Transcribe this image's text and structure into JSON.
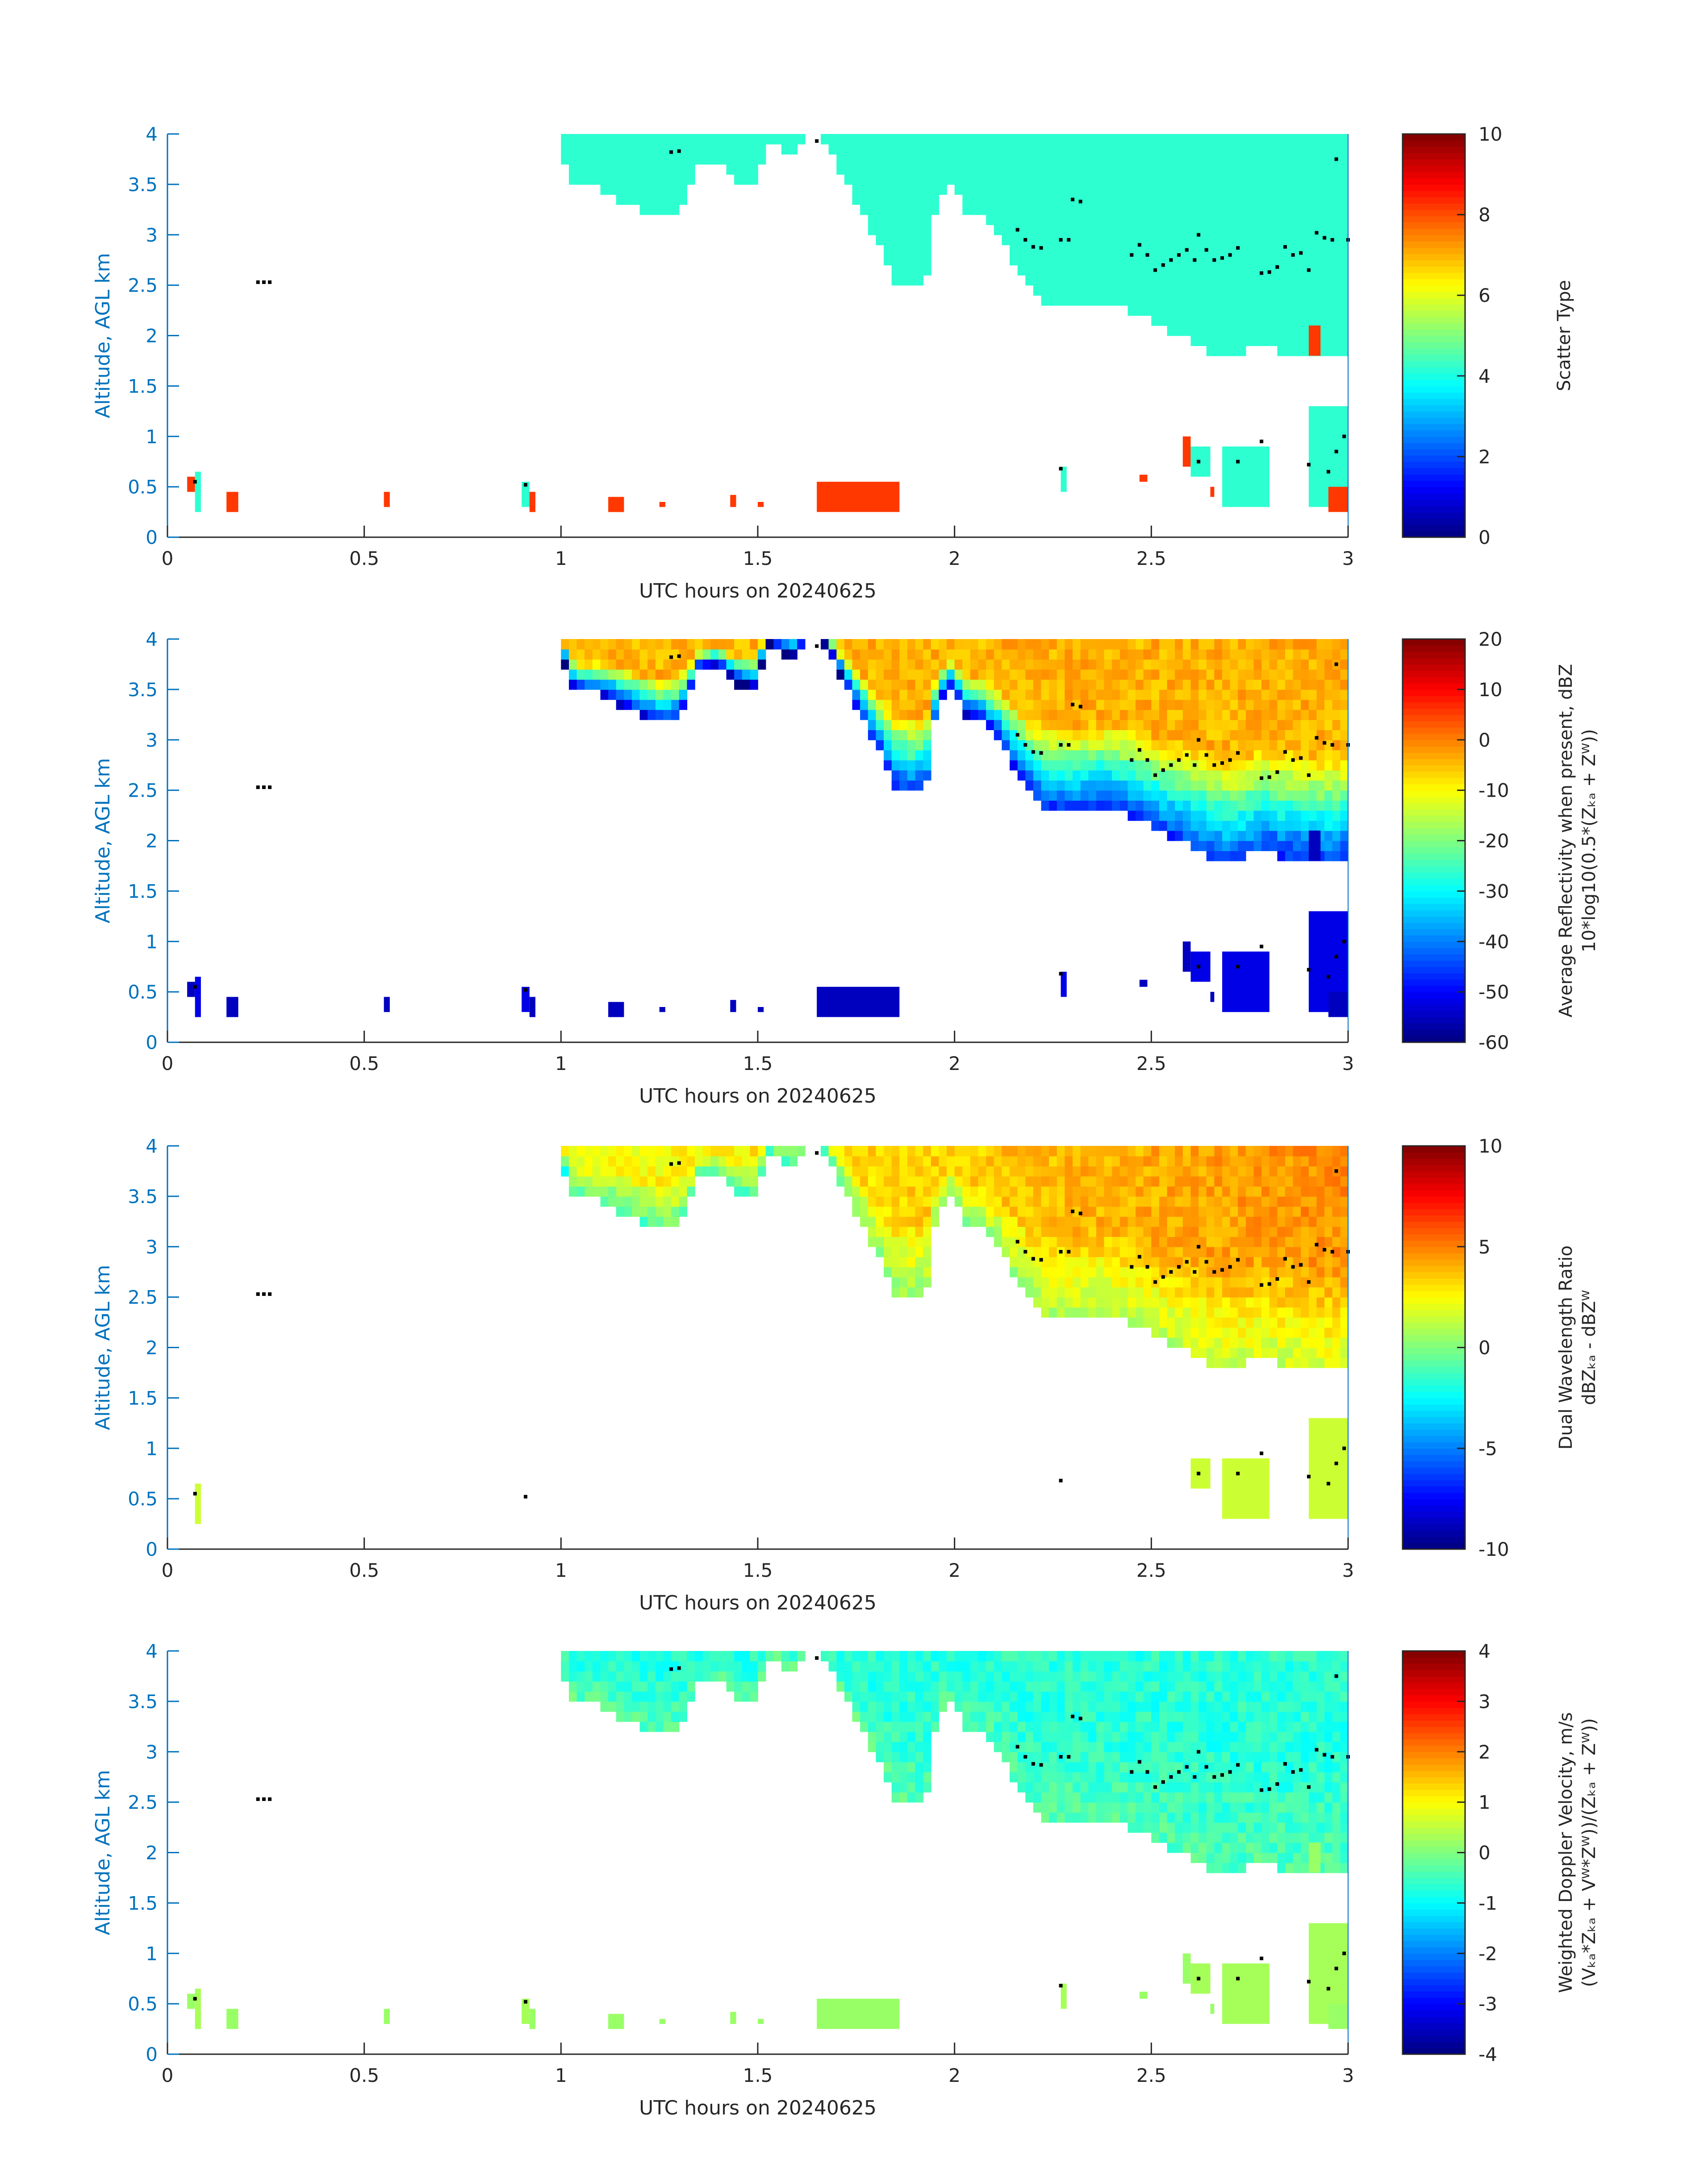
{
  "chart_data": {
    "type": "heatmap",
    "x_axis": {
      "label": "UTC hours on 20240625",
      "range": [
        0,
        3
      ],
      "ticks": [
        "0",
        "0.5",
        "1",
        "1.5",
        "2",
        "2.5",
        "3"
      ]
    },
    "y_axis": {
      "label": "Altitude, AGL km",
      "range": [
        0,
        4
      ],
      "ticks": [
        "0",
        "0.5",
        "1",
        "1.5",
        "2",
        "2.5",
        "3",
        "3.5",
        "4"
      ]
    },
    "cloud_base_profile": [
      [
        1.0,
        3.95
      ],
      [
        1.02,
        3.6
      ],
      [
        1.05,
        3.5
      ],
      [
        1.1,
        3.5
      ],
      [
        1.15,
        3.4
      ],
      [
        1.2,
        3.3
      ],
      [
        1.25,
        3.2
      ],
      [
        1.3,
        3.25
      ],
      [
        1.35,
        3.7
      ],
      [
        1.4,
        3.75
      ],
      [
        1.45,
        3.6
      ],
      [
        1.5,
        3.55
      ],
      [
        1.52,
        4.0
      ],
      [
        1.56,
        3.9
      ],
      [
        1.6,
        3.85
      ],
      [
        1.62,
        4.0
      ],
      [
        1.66,
        4.0
      ],
      [
        1.68,
        3.9
      ],
      [
        1.72,
        3.6
      ],
      [
        1.76,
        3.3
      ],
      [
        1.8,
        3.0
      ],
      [
        1.85,
        2.6
      ],
      [
        1.9,
        2.5
      ],
      [
        1.93,
        2.6
      ],
      [
        1.95,
        3.2
      ],
      [
        1.98,
        3.6
      ],
      [
        2.03,
        3.3
      ],
      [
        2.08,
        3.2
      ],
      [
        2.12,
        3.0
      ],
      [
        2.18,
        2.6
      ],
      [
        2.22,
        2.4
      ],
      [
        2.3,
        2.35
      ],
      [
        2.4,
        2.4
      ],
      [
        2.45,
        2.3
      ],
      [
        2.5,
        2.2
      ],
      [
        2.55,
        2.1
      ],
      [
        2.6,
        2.0
      ],
      [
        2.65,
        1.9
      ],
      [
        2.7,
        1.8
      ],
      [
        2.75,
        1.9
      ],
      [
        2.8,
        2.0
      ],
      [
        2.83,
        1.9
      ],
      [
        2.88,
        1.9
      ],
      [
        2.92,
        1.85
      ],
      [
        2.96,
        1.85
      ],
      [
        3.0,
        1.9
      ]
    ],
    "low_patches": [
      {
        "t": [
          0.05,
          0.07
        ],
        "z": [
          0.45,
          0.6
        ],
        "kind": "clutter"
      },
      {
        "t": [
          0.07,
          0.085
        ],
        "z": [
          0.25,
          0.65
        ],
        "kind": "echo"
      },
      {
        "t": [
          0.15,
          0.18
        ],
        "z": [
          0.25,
          0.45
        ],
        "kind": "clutter"
      },
      {
        "t": [
          0.55,
          0.565
        ],
        "z": [
          0.3,
          0.45
        ],
        "kind": "clutter"
      },
      {
        "t": [
          0.9,
          0.92
        ],
        "z": [
          0.3,
          0.55
        ],
        "kind": "echo"
      },
      {
        "t": [
          0.92,
          0.935
        ],
        "z": [
          0.25,
          0.45
        ],
        "kind": "clutter"
      },
      {
        "t": [
          1.12,
          1.16
        ],
        "z": [
          0.25,
          0.4
        ],
        "kind": "clutter"
      },
      {
        "t": [
          1.25,
          1.265
        ],
        "z": [
          0.3,
          0.35
        ],
        "kind": "clutter"
      },
      {
        "t": [
          1.43,
          1.445
        ],
        "z": [
          0.3,
          0.42
        ],
        "kind": "clutter"
      },
      {
        "t": [
          1.5,
          1.515
        ],
        "z": [
          0.3,
          0.35
        ],
        "kind": "clutter"
      },
      {
        "t": [
          1.65,
          1.86
        ],
        "z": [
          0.25,
          0.55
        ],
        "kind": "clutter"
      },
      {
        "t": [
          2.27,
          2.285
        ],
        "z": [
          0.45,
          0.7
        ],
        "kind": "echo"
      },
      {
        "t": [
          2.47,
          2.49
        ],
        "z": [
          0.55,
          0.62
        ],
        "kind": "clutter"
      },
      {
        "t": [
          2.58,
          2.6
        ],
        "z": [
          0.7,
          1.0
        ],
        "kind": "clutter"
      },
      {
        "t": [
          2.6,
          2.65
        ],
        "z": [
          0.6,
          0.9
        ],
        "kind": "echo"
      },
      {
        "t": [
          2.65,
          2.66
        ],
        "z": [
          0.4,
          0.5
        ],
        "kind": "clutter"
      },
      {
        "t": [
          2.68,
          2.8
        ],
        "z": [
          0.3,
          0.9
        ],
        "kind": "echo"
      },
      {
        "t": [
          2.9,
          3.0
        ],
        "z": [
          0.3,
          1.3
        ],
        "kind": "echo"
      },
      {
        "t": [
          2.95,
          3.0
        ],
        "z": [
          0.25,
          0.5
        ],
        "kind": "clutter"
      },
      {
        "t": [
          2.9,
          2.93
        ],
        "z": [
          1.8,
          2.1
        ],
        "kind": "clutter"
      }
    ],
    "marker_points": [
      [
        0.23,
        2.53
      ],
      [
        0.245,
        2.53
      ],
      [
        0.26,
        2.53
      ],
      [
        1.28,
        3.82
      ],
      [
        1.3,
        3.83
      ],
      [
        1.65,
        3.93
      ],
      [
        2.16,
        3.05
      ],
      [
        2.18,
        2.95
      ],
      [
        2.2,
        2.88
      ],
      [
        2.22,
        2.87
      ],
      [
        2.27,
        2.95
      ],
      [
        2.29,
        2.95
      ],
      [
        2.3,
        3.35
      ],
      [
        2.32,
        3.33
      ],
      [
        2.45,
        2.8
      ],
      [
        2.47,
        2.9
      ],
      [
        2.49,
        2.8
      ],
      [
        2.51,
        2.65
      ],
      [
        2.53,
        2.7
      ],
      [
        2.55,
        2.75
      ],
      [
        2.57,
        2.8
      ],
      [
        2.59,
        2.85
      ],
      [
        2.61,
        2.75
      ],
      [
        2.62,
        3.0
      ],
      [
        2.64,
        2.85
      ],
      [
        2.66,
        2.75
      ],
      [
        2.68,
        2.77
      ],
      [
        2.7,
        2.8
      ],
      [
        2.72,
        2.87
      ],
      [
        2.78,
        2.62
      ],
      [
        2.8,
        2.63
      ],
      [
        2.82,
        2.68
      ],
      [
        2.84,
        2.88
      ],
      [
        2.86,
        2.8
      ],
      [
        2.88,
        2.82
      ],
      [
        2.9,
        2.65
      ],
      [
        2.92,
        3.02
      ],
      [
        2.94,
        2.97
      ],
      [
        2.96,
        2.95
      ],
      [
        2.97,
        3.75
      ],
      [
        3.0,
        2.95
      ],
      [
        0.07,
        0.55
      ],
      [
        0.91,
        0.52
      ],
      [
        2.27,
        0.68
      ],
      [
        2.62,
        0.75
      ],
      [
        2.72,
        0.75
      ],
      [
        2.78,
        0.95
      ],
      [
        2.9,
        0.72
      ],
      [
        2.95,
        0.65
      ],
      [
        2.97,
        0.85
      ],
      [
        2.99,
        1.0
      ]
    ],
    "panels": [
      {
        "name": "scatter-type",
        "colorbar": {
          "range": [
            0,
            10
          ],
          "ticks": [
            "0",
            "2",
            "4",
            "6",
            "8",
            "10"
          ],
          "label_lines": [
            "Scatter Type"
          ]
        },
        "cloud_value": [
          4.2,
          4.2
        ],
        "clutter_value": 8.2,
        "echo_value": 4.2,
        "show_clutter": true,
        "show_low_echo": true
      },
      {
        "name": "reflectivity",
        "colorbar": {
          "range": [
            -60,
            20
          ],
          "ticks": [
            "-60",
            "-50",
            "-40",
            "-30",
            "-20",
            "-10",
            "0",
            "10",
            "20"
          ],
          "label_lines": [
            "Average Reflectivity when present, dBZ",
            "10*log10(0.5*(Zₖₐ + Zᵂ))"
          ]
        },
        "cloud_value": [
          -42,
          -4
        ],
        "clutter_value": -55,
        "echo_value": -52,
        "show_clutter": true,
        "show_low_echo": true
      },
      {
        "name": "dual-wavelength-ratio",
        "colorbar": {
          "range": [
            -10,
            10
          ],
          "ticks": [
            "-10",
            "-5",
            "0",
            "5",
            "10"
          ],
          "label_lines": [
            "Dual Wavelength Ratio",
            "dBZₖₐ - dBZᵂ"
          ]
        },
        "cloud_value": [
          0.8,
          3.5
        ],
        "clutter_value": null,
        "echo_value": 1.5,
        "show_clutter": false,
        "show_low_echo": true
      },
      {
        "name": "doppler-velocity",
        "colorbar": {
          "range": [
            -4,
            4
          ],
          "ticks": [
            "-4",
            "-3",
            "-2",
            "-1",
            "0",
            "1",
            "2",
            "3",
            "4"
          ],
          "label_lines": [
            "Weighted Doppler Velocity, m/s",
            "(Vₖₐ*Zₖₐ + Vᵂ*Zᵂ))/(Zₖₐ + Zᵂ))"
          ]
        },
        "cloud_value": [
          -0.4,
          -0.7
        ],
        "clutter_value": 0.2,
        "echo_value": 0.3,
        "show_clutter": true,
        "show_low_echo": true
      }
    ]
  }
}
